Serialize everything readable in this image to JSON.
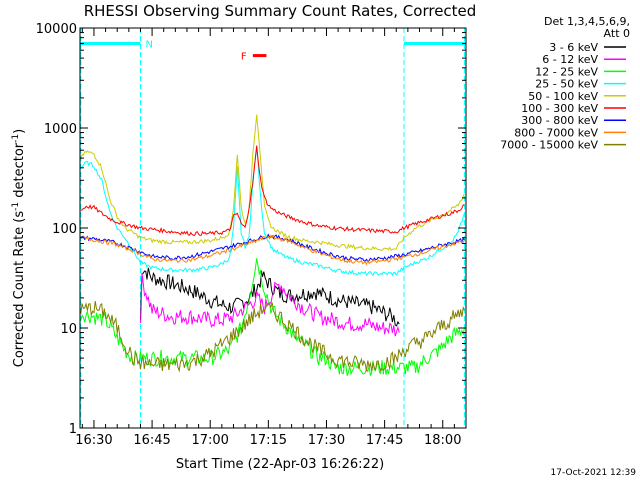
{
  "chart_data": {
    "type": "line",
    "title": "RHESSI Observing Summary Count Rates, Corrected",
    "xlabel": "Start Time (22-Apr-03 16:26:22)",
    "ylabel_main": "Corrected Count Rate (s",
    "ylabel_sup1": "-1",
    "ylabel_mid": " detector",
    "ylabel_sup2": "-1",
    "ylabel_end": ")",
    "y_scale": "log",
    "ylim": [
      1,
      10000
    ],
    "xlim": [
      26.4,
      126.0
    ],
    "x_unit": "minutes after 16:00 UT",
    "x_tick_values": [
      30,
      45,
      60,
      75,
      90,
      105,
      120
    ],
    "x_tick_labels": [
      "16:30",
      "16:45",
      "17:00",
      "17:15",
      "17:30",
      "17:45",
      "18:00"
    ],
    "y_tick_values": [
      1,
      10,
      100,
      1000,
      10000
    ],
    "y_tick_labels": [
      "1",
      "10",
      "100",
      "1000",
      "10000"
    ],
    "legend_header": [
      "Det 1,3,4,5,6,9,",
      "Att 0"
    ],
    "legend_position": "right, outside",
    "footer_date": "17-Oct-2021 12:39",
    "flag_labels": {
      "night": "N",
      "flare": "F"
    },
    "annotations": {
      "night_intervals": [
        [
          26.4,
          42.0
        ],
        [
          110.0,
          126.0
        ]
      ],
      "night_bar_y": 7000,
      "night_boundaries": [
        26.6,
        42.0,
        110.0,
        125.6
      ],
      "flare_interval": [
        71.0,
        74.5
      ],
      "flare_bar_y": 5300
    },
    "series": [
      {
        "name": "3 - 6 keV",
        "color": "#000000",
        "x": [
          42.0,
          42.4,
          45,
          50,
          55,
          60,
          63,
          66,
          68,
          70,
          72,
          73.5,
          75.5,
          78,
          81,
          84,
          87,
          90,
          93,
          96,
          99,
          102,
          105,
          107,
          108.8
        ],
        "y": [
          12,
          40,
          32,
          28,
          24,
          19,
          17,
          16,
          18,
          20,
          25,
          33,
          27,
          22,
          21,
          22,
          23,
          21,
          19,
          18,
          17,
          16,
          14,
          13,
          11
        ]
      },
      {
        "name": "6 - 12 keV",
        "color": "#ff00ff",
        "x": [
          42.0,
          42.4,
          45,
          50,
          55,
          60,
          63,
          66,
          68,
          70,
          72,
          74,
          76,
          78,
          80,
          84,
          88,
          92,
          96,
          100,
          104,
          107,
          108.8
        ],
        "y": [
          12,
          30,
          15,
          13,
          13,
          12,
          12,
          13,
          15,
          17,
          20,
          16,
          22,
          28,
          22,
          16,
          13,
          12,
          11,
          11,
          10,
          10,
          9
        ]
      },
      {
        "name": "12 - 25 keV",
        "color": "#00ff00",
        "x": [
          26.6,
          30,
          33,
          36,
          38,
          40,
          42,
          45,
          50,
          55,
          60,
          65,
          68,
          70,
          72,
          74,
          76,
          78,
          80,
          82,
          84,
          86,
          88,
          90,
          92,
          96,
          100,
          104,
          108,
          110,
          113,
          116,
          119,
          122,
          125.6
        ],
        "y": [
          14,
          13,
          12,
          8,
          6,
          5,
          5,
          5,
          5,
          5,
          5,
          6,
          10,
          20,
          50,
          25,
          15,
          12,
          10,
          8,
          7,
          6,
          5,
          5,
          4,
          4,
          4,
          4,
          4,
          4,
          4,
          5,
          6,
          8,
          10
        ]
      },
      {
        "name": "25 - 50 keV",
        "color": "#00ffff",
        "x": [
          26.6,
          28,
          30,
          32,
          34,
          36,
          38,
          40,
          42,
          45,
          50,
          55,
          60,
          63,
          65,
          66,
          67,
          68,
          69,
          70,
          71,
          72,
          73,
          74,
          75,
          76,
          78,
          80,
          84,
          88,
          92,
          96,
          100,
          104,
          108,
          110,
          113,
          116,
          119,
          122,
          124,
          125.6
        ],
        "y": [
          400,
          450,
          420,
          300,
          150,
          100,
          80,
          60,
          45,
          40,
          38,
          38,
          40,
          44,
          50,
          100,
          400,
          90,
          65,
          80,
          300,
          650,
          200,
          90,
          75,
          62,
          55,
          50,
          45,
          42,
          38,
          36,
          35,
          35,
          35,
          40,
          45,
          50,
          60,
          70,
          90,
          140
        ]
      },
      {
        "name": "50 - 100 keV",
        "color": "#cccc00",
        "x": [
          26.6,
          28,
          30,
          32,
          34,
          36,
          38,
          40,
          42,
          45,
          50,
          55,
          60,
          63,
          65,
          66,
          67,
          68,
          69,
          70,
          71,
          72,
          73,
          74,
          75,
          76,
          78,
          80,
          84,
          88,
          92,
          96,
          100,
          104,
          108,
          110,
          113,
          116,
          119,
          122,
          124,
          125.6
        ],
        "y": [
          500,
          580,
          550,
          400,
          200,
          130,
          100,
          90,
          80,
          75,
          72,
          72,
          75,
          80,
          90,
          160,
          550,
          160,
          110,
          150,
          550,
          1400,
          500,
          160,
          120,
          100,
          90,
          82,
          75,
          72,
          68,
          65,
          63,
          62,
          62,
          80,
          100,
          115,
          130,
          150,
          170,
          220
        ]
      },
      {
        "name": "100 - 300 keV",
        "color": "#ff0000",
        "x": [
          26.6,
          28,
          30,
          32,
          34,
          36,
          38,
          40,
          42,
          45,
          50,
          55,
          60,
          63,
          65,
          66,
          67,
          68,
          69,
          70,
          71,
          72,
          73,
          74,
          75,
          76,
          78,
          80,
          84,
          88,
          92,
          96,
          100,
          104,
          108,
          110,
          113,
          116,
          119,
          122,
          124,
          125.6
        ],
        "y": [
          150,
          165,
          160,
          140,
          125,
          115,
          110,
          105,
          100,
          97,
          92,
          88,
          88,
          90,
          95,
          130,
          140,
          110,
          100,
          160,
          280,
          650,
          300,
          200,
          170,
          155,
          140,
          130,
          115,
          105,
          100,
          97,
          95,
          93,
          92,
          100,
          110,
          120,
          130,
          140,
          150,
          170
        ]
      },
      {
        "name": "300 - 800 keV",
        "color": "#0000ff",
        "x": [
          26.6,
          30,
          35,
          40,
          45,
          50,
          55,
          60,
          65,
          70,
          75,
          80,
          85,
          90,
          95,
          100,
          105,
          110,
          115,
          120,
          125.6
        ],
        "y": [
          80,
          78,
          72,
          62,
          52,
          50,
          52,
          58,
          65,
          74,
          84,
          77,
          65,
          56,
          50,
          48,
          50,
          54,
          60,
          68,
          76
        ]
      },
      {
        "name": "800 - 7000 keV",
        "color": "#ff8000",
        "x": [
          26.6,
          30,
          35,
          40,
          45,
          50,
          55,
          60,
          65,
          70,
          75,
          80,
          85,
          90,
          95,
          100,
          105,
          110,
          115,
          120,
          125.6
        ],
        "y": [
          80,
          76,
          70,
          60,
          49,
          47,
          48,
          53,
          60,
          70,
          82,
          75,
          62,
          53,
          47,
          45,
          47,
          51,
          57,
          65,
          75
        ]
      },
      {
        "name": "7000 - 15000 keV",
        "color": "#808000",
        "x": [
          26.6,
          30,
          33,
          36,
          38,
          40,
          42,
          45,
          50,
          55,
          60,
          65,
          68,
          70,
          72,
          74,
          76,
          78,
          80,
          84,
          88,
          92,
          96,
          100,
          104,
          108,
          110,
          113,
          116,
          119,
          122,
          125.6
        ],
        "y": [
          15,
          16,
          14,
          10,
          7,
          5,
          4.5,
          4.3,
          4.3,
          4.5,
          5.5,
          8,
          10,
          12,
          14,
          16,
          15,
          13,
          11,
          8,
          6,
          5,
          4.5,
          4.3,
          4.4,
          5,
          6,
          7,
          8,
          10,
          12,
          15
        ]
      }
    ]
  }
}
